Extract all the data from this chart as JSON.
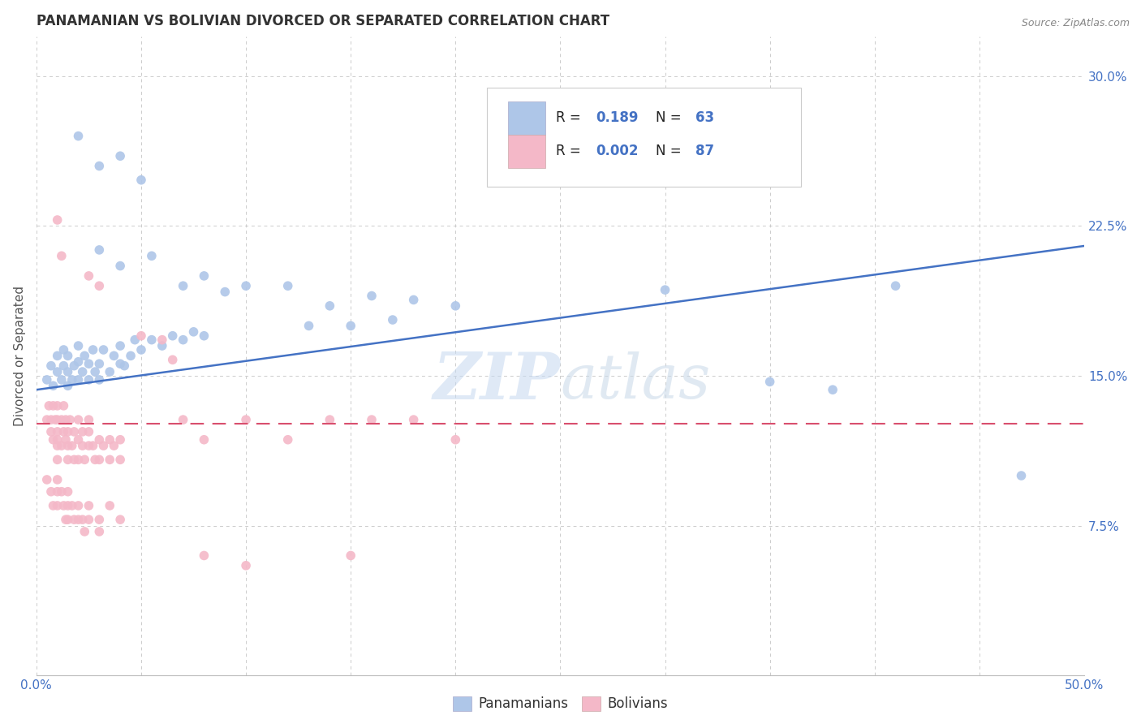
{
  "title": "PANAMANIAN VS BOLIVIAN DIVORCED OR SEPARATED CORRELATION CHART",
  "source": "Source: ZipAtlas.com",
  "ylabel": "Divorced or Separated",
  "xlim": [
    0.0,
    0.5
  ],
  "ylim": [
    0.0,
    0.32
  ],
  "watermark": "ZIPatlas",
  "blue_dots": [
    [
      0.005,
      0.148
    ],
    [
      0.007,
      0.155
    ],
    [
      0.008,
      0.145
    ],
    [
      0.01,
      0.152
    ],
    [
      0.01,
      0.16
    ],
    [
      0.012,
      0.148
    ],
    [
      0.013,
      0.155
    ],
    [
      0.013,
      0.163
    ],
    [
      0.015,
      0.145
    ],
    [
      0.015,
      0.152
    ],
    [
      0.015,
      0.16
    ],
    [
      0.017,
      0.148
    ],
    [
      0.018,
      0.155
    ],
    [
      0.02,
      0.148
    ],
    [
      0.02,
      0.157
    ],
    [
      0.02,
      0.165
    ],
    [
      0.022,
      0.152
    ],
    [
      0.023,
      0.16
    ],
    [
      0.025,
      0.148
    ],
    [
      0.025,
      0.156
    ],
    [
      0.027,
      0.163
    ],
    [
      0.028,
      0.152
    ],
    [
      0.03,
      0.148
    ],
    [
      0.03,
      0.156
    ],
    [
      0.032,
      0.163
    ],
    [
      0.035,
      0.152
    ],
    [
      0.037,
      0.16
    ],
    [
      0.04,
      0.156
    ],
    [
      0.04,
      0.165
    ],
    [
      0.042,
      0.155
    ],
    [
      0.045,
      0.16
    ],
    [
      0.047,
      0.168
    ],
    [
      0.05,
      0.163
    ],
    [
      0.055,
      0.168
    ],
    [
      0.06,
      0.165
    ],
    [
      0.065,
      0.17
    ],
    [
      0.07,
      0.168
    ],
    [
      0.075,
      0.172
    ],
    [
      0.08,
      0.17
    ],
    [
      0.02,
      0.27
    ],
    [
      0.03,
      0.255
    ],
    [
      0.04,
      0.26
    ],
    [
      0.05,
      0.248
    ],
    [
      0.03,
      0.213
    ],
    [
      0.04,
      0.205
    ],
    [
      0.055,
      0.21
    ],
    [
      0.07,
      0.195
    ],
    [
      0.08,
      0.2
    ],
    [
      0.09,
      0.192
    ],
    [
      0.1,
      0.195
    ],
    [
      0.12,
      0.195
    ],
    [
      0.14,
      0.185
    ],
    [
      0.16,
      0.19
    ],
    [
      0.18,
      0.188
    ],
    [
      0.2,
      0.185
    ],
    [
      0.13,
      0.175
    ],
    [
      0.15,
      0.175
    ],
    [
      0.17,
      0.178
    ],
    [
      0.3,
      0.193
    ],
    [
      0.35,
      0.147
    ],
    [
      0.38,
      0.143
    ],
    [
      0.41,
      0.195
    ],
    [
      0.47,
      0.1
    ]
  ],
  "pink_dots": [
    [
      0.005,
      0.128
    ],
    [
      0.006,
      0.135
    ],
    [
      0.007,
      0.122
    ],
    [
      0.007,
      0.128
    ],
    [
      0.008,
      0.135
    ],
    [
      0.008,
      0.118
    ],
    [
      0.009,
      0.128
    ],
    [
      0.01,
      0.118
    ],
    [
      0.01,
      0.128
    ],
    [
      0.01,
      0.135
    ],
    [
      0.01,
      0.115
    ],
    [
      0.01,
      0.108
    ],
    [
      0.01,
      0.122
    ],
    [
      0.012,
      0.128
    ],
    [
      0.012,
      0.115
    ],
    [
      0.013,
      0.122
    ],
    [
      0.013,
      0.135
    ],
    [
      0.014,
      0.118
    ],
    [
      0.014,
      0.128
    ],
    [
      0.015,
      0.115
    ],
    [
      0.015,
      0.122
    ],
    [
      0.015,
      0.108
    ],
    [
      0.016,
      0.128
    ],
    [
      0.017,
      0.115
    ],
    [
      0.018,
      0.122
    ],
    [
      0.018,
      0.108
    ],
    [
      0.02,
      0.118
    ],
    [
      0.02,
      0.128
    ],
    [
      0.02,
      0.108
    ],
    [
      0.022,
      0.115
    ],
    [
      0.022,
      0.122
    ],
    [
      0.023,
      0.108
    ],
    [
      0.025,
      0.115
    ],
    [
      0.025,
      0.122
    ],
    [
      0.025,
      0.128
    ],
    [
      0.027,
      0.115
    ],
    [
      0.028,
      0.108
    ],
    [
      0.03,
      0.118
    ],
    [
      0.03,
      0.108
    ],
    [
      0.032,
      0.115
    ],
    [
      0.035,
      0.118
    ],
    [
      0.035,
      0.108
    ],
    [
      0.037,
      0.115
    ],
    [
      0.04,
      0.108
    ],
    [
      0.04,
      0.118
    ],
    [
      0.005,
      0.098
    ],
    [
      0.007,
      0.092
    ],
    [
      0.008,
      0.085
    ],
    [
      0.01,
      0.098
    ],
    [
      0.01,
      0.092
    ],
    [
      0.01,
      0.085
    ],
    [
      0.012,
      0.092
    ],
    [
      0.013,
      0.085
    ],
    [
      0.014,
      0.078
    ],
    [
      0.015,
      0.092
    ],
    [
      0.015,
      0.085
    ],
    [
      0.015,
      0.078
    ],
    [
      0.017,
      0.085
    ],
    [
      0.018,
      0.078
    ],
    [
      0.02,
      0.078
    ],
    [
      0.02,
      0.085
    ],
    [
      0.022,
      0.078
    ],
    [
      0.023,
      0.072
    ],
    [
      0.025,
      0.085
    ],
    [
      0.025,
      0.078
    ],
    [
      0.03,
      0.078
    ],
    [
      0.03,
      0.072
    ],
    [
      0.035,
      0.085
    ],
    [
      0.04,
      0.078
    ],
    [
      0.01,
      0.228
    ],
    [
      0.012,
      0.21
    ],
    [
      0.025,
      0.2
    ],
    [
      0.03,
      0.195
    ],
    [
      0.05,
      0.17
    ],
    [
      0.06,
      0.168
    ],
    [
      0.065,
      0.158
    ],
    [
      0.07,
      0.128
    ],
    [
      0.08,
      0.118
    ],
    [
      0.1,
      0.128
    ],
    [
      0.12,
      0.118
    ],
    [
      0.14,
      0.128
    ],
    [
      0.16,
      0.128
    ],
    [
      0.18,
      0.128
    ],
    [
      0.2,
      0.118
    ],
    [
      0.1,
      0.055
    ],
    [
      0.15,
      0.06
    ],
    [
      0.08,
      0.06
    ]
  ],
  "blue_line": {
    "x0": 0.0,
    "y0": 0.143,
    "x1": 0.5,
    "y1": 0.215
  },
  "pink_line": {
    "x0": 0.0,
    "y0": 0.126,
    "x1": 0.5,
    "y1": 0.126
  },
  "blue_line_color": "#4472c4",
  "pink_line_color": "#d94f6e",
  "dot_blue_color": "#aec6e8",
  "dot_pink_color": "#f4b8c8",
  "dot_size": 70,
  "dot_alpha": 0.9,
  "background_color": "#ffffff",
  "grid_color": "#cccccc"
}
